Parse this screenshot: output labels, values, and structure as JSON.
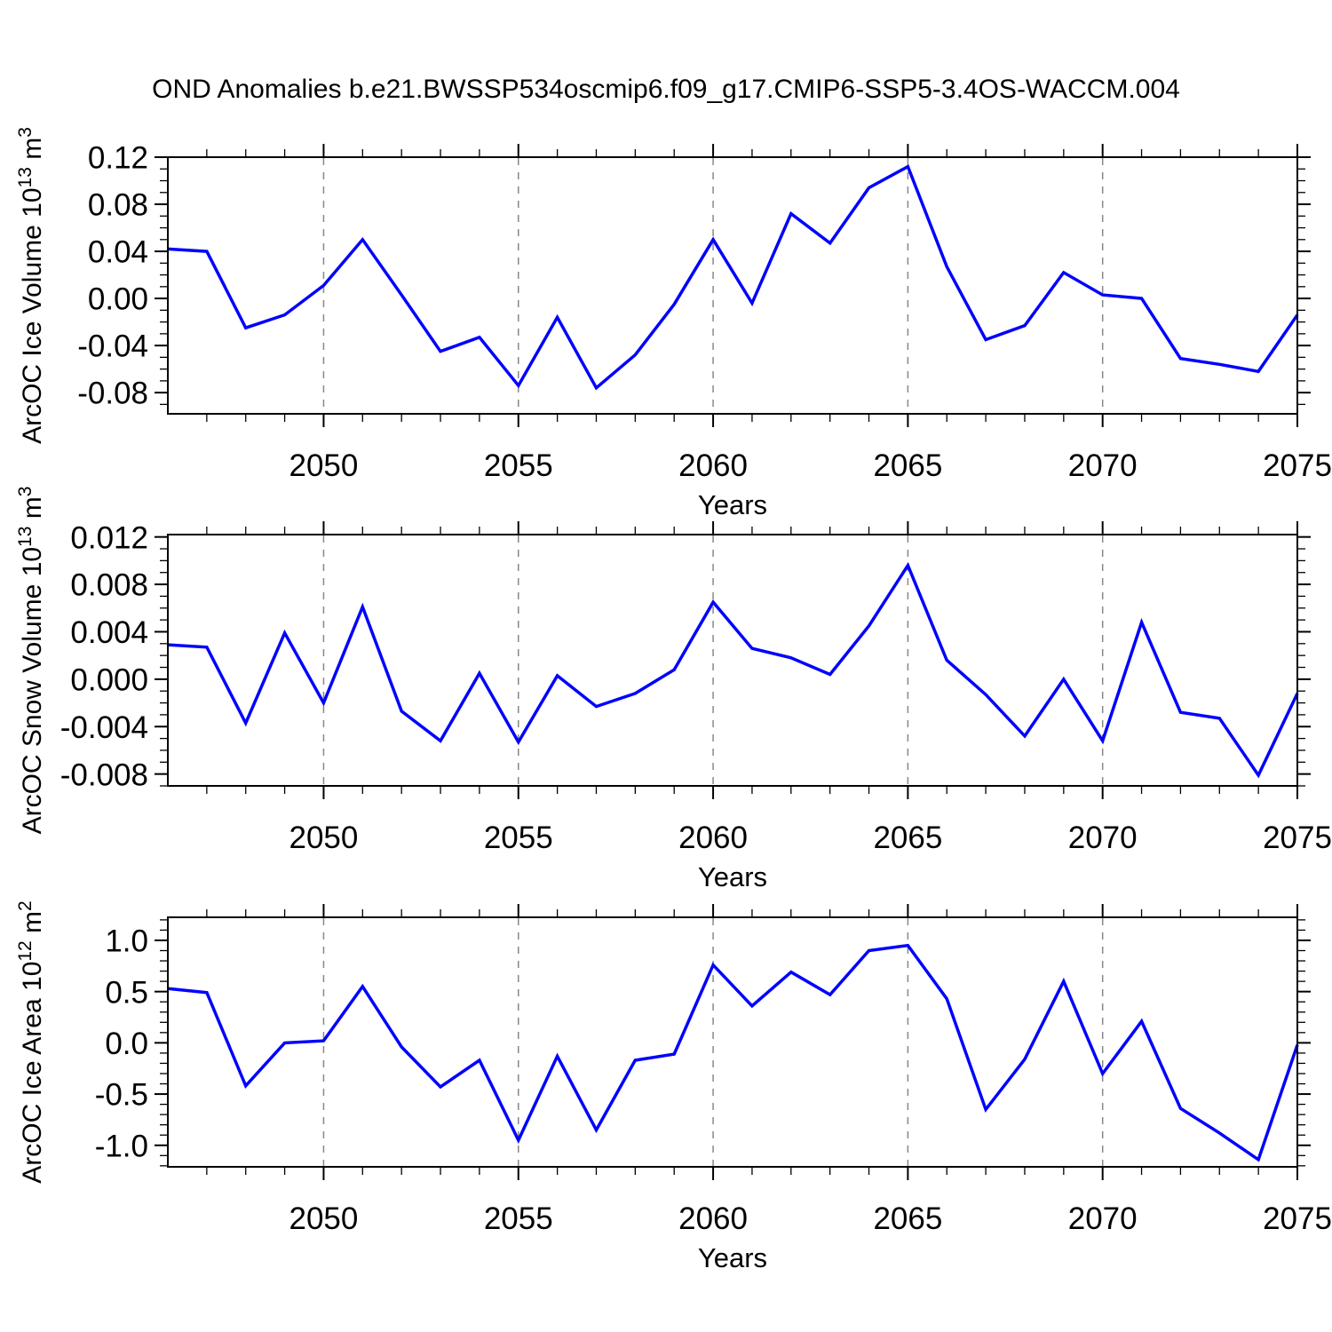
{
  "title": "OND Anomalies b.e21.BWSSP534oscmip6.f09_g17.CMIP6-SSP5-3.4OS-WACCM.004",
  "colors": {
    "line": "#0000ff",
    "grid": "#888888",
    "axis": "#000000",
    "background": "#ffffff"
  },
  "x_axis": {
    "label": "Years",
    "tick_labels": [
      "2050",
      "2055",
      "2060",
      "2065",
      "2070",
      "2075"
    ],
    "gridline_years": [
      2050,
      2055,
      2060,
      2065,
      2070
    ]
  },
  "chart_data": [
    {
      "type": "line",
      "ylabel": "ArcOC Ice Volume 10^13 m^3",
      "ylabel_parts": [
        {
          "t": "ArcOC Ice Volume 10"
        },
        {
          "t": "13",
          "sup": true
        },
        {
          "t": " m"
        },
        {
          "t": "3",
          "sup": true
        }
      ],
      "xlabel": "Years",
      "xlim": [
        2046,
        2075
      ],
      "ylim": [
        -0.098,
        0.12
      ],
      "ytick_labels": [
        "0.12",
        "0.08",
        "0.04",
        "0.00",
        "-0.04",
        "-0.08"
      ],
      "yticks": [
        0.12,
        0.08,
        0.04,
        0.0,
        -0.04,
        -0.08
      ],
      "y_minor_step": 0.01,
      "y_major_every": 4,
      "x": [
        2046,
        2047,
        2048,
        2049,
        2050,
        2051,
        2052,
        2053,
        2054,
        2055,
        2056,
        2057,
        2058,
        2059,
        2060,
        2061,
        2062,
        2063,
        2064,
        2065,
        2066,
        2067,
        2068,
        2069,
        2070,
        2071,
        2072,
        2073,
        2074,
        2075
      ],
      "values": [
        0.042,
        0.04,
        -0.025,
        -0.014,
        0.011,
        0.05,
        0.003,
        -0.045,
        -0.033,
        -0.074,
        -0.016,
        -0.076,
        -0.048,
        -0.005,
        0.05,
        -0.004,
        0.072,
        0.047,
        0.094,
        0.112,
        0.027,
        -0.035,
        -0.023,
        0.022,
        0.003,
        0.0,
        -0.051,
        -0.056,
        -0.062,
        -0.014
      ]
    },
    {
      "type": "line",
      "ylabel": "ArcOC Snow Volume 10^13 m^3",
      "ylabel_parts": [
        {
          "t": "ArcOC Snow Volume 10"
        },
        {
          "t": "13",
          "sup": true
        },
        {
          "t": " m"
        },
        {
          "t": "3",
          "sup": true
        }
      ],
      "xlabel": "Years",
      "xlim": [
        2046,
        2075
      ],
      "ylim": [
        -0.009,
        0.0122
      ],
      "ytick_labels": [
        "0.012",
        "0.008",
        "0.004",
        "0.000",
        "-0.004",
        "-0.008"
      ],
      "yticks": [
        0.012,
        0.008,
        0.004,
        0.0,
        -0.004,
        -0.008
      ],
      "y_minor_step": 0.001,
      "y_major_every": 4,
      "x": [
        2046,
        2047,
        2048,
        2049,
        2050,
        2051,
        2052,
        2053,
        2054,
        2055,
        2056,
        2057,
        2058,
        2059,
        2060,
        2061,
        2062,
        2063,
        2064,
        2065,
        2066,
        2067,
        2068,
        2069,
        2070,
        2071,
        2072,
        2073,
        2074,
        2075
      ],
      "values": [
        0.0029,
        0.0027,
        -0.0037,
        0.0039,
        -0.002,
        0.0061,
        -0.0027,
        -0.0052,
        0.0005,
        -0.0053,
        0.0003,
        -0.0023,
        -0.0012,
        0.0008,
        0.0065,
        0.0026,
        0.0018,
        0.0004,
        0.0045,
        0.0096,
        0.0016,
        -0.0013,
        -0.0048,
        0.0,
        -0.0052,
        0.0048,
        -0.0028,
        -0.0033,
        -0.0081,
        -0.0012
      ]
    },
    {
      "type": "line",
      "ylabel": "ArcOC Ice Area 10^12 m^2",
      "ylabel_parts": [
        {
          "t": "ArcOC Ice Area 10"
        },
        {
          "t": "12",
          "sup": true
        },
        {
          "t": " m"
        },
        {
          "t": "2",
          "sup": true
        }
      ],
      "xlabel": "Years",
      "xlim": [
        2046,
        2075
      ],
      "ylim": [
        -1.21,
        1.225
      ],
      "ytick_labels": [
        "1.0",
        "0.5",
        "0.0",
        "-0.5",
        "-1.0"
      ],
      "yticks": [
        1.0,
        0.5,
        0.0,
        -0.5,
        -1.0
      ],
      "y_minor_step": 0.1,
      "y_major_every": 5,
      "x": [
        2046,
        2047,
        2048,
        2049,
        2050,
        2051,
        2052,
        2053,
        2054,
        2055,
        2056,
        2057,
        2058,
        2059,
        2060,
        2061,
        2062,
        2063,
        2064,
        2065,
        2066,
        2067,
        2068,
        2069,
        2070,
        2071,
        2072,
        2073,
        2074,
        2075
      ],
      "values": [
        0.53,
        0.49,
        -0.42,
        0.0,
        0.02,
        0.55,
        -0.04,
        -0.43,
        -0.17,
        -0.95,
        -0.13,
        -0.85,
        -0.17,
        -0.11,
        0.76,
        0.36,
        0.69,
        0.47,
        0.9,
        0.95,
        0.43,
        -0.65,
        -0.16,
        0.6,
        -0.3,
        0.21,
        -0.64,
        -0.88,
        -1.14,
        -0.02
      ]
    }
  ]
}
